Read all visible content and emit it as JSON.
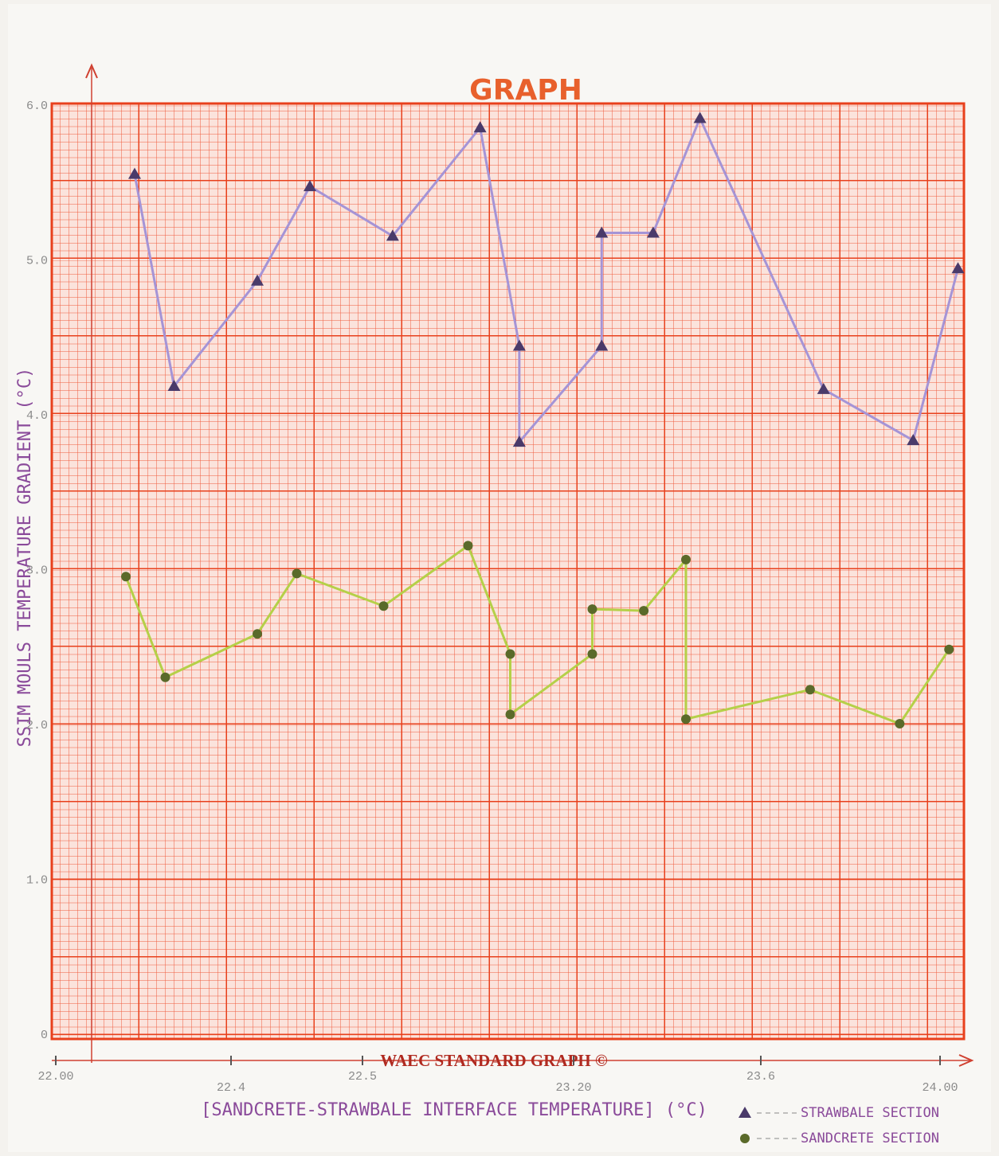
{
  "chart_data": {
    "type": "line",
    "title": "GRAPH",
    "y_label": "SSIM MOULS TEMPERATURE GRADIENT (°C)",
    "x_label": "[SANDCRETE-STRAWBALE INTERFACE TEMPERATURE] (°C)",
    "footer": "WAEC STANDARD GRAPH ©",
    "xlim": [
      22.0,
      24.06
    ],
    "xticks": [
      {
        "value": 22.0,
        "label": "22.00"
      },
      22.4,
      22.5,
      {
        "value": 23.2,
        "label": "23.20"
      },
      23.6,
      {
        "value": 24.0,
        "label": "24.00"
      }
    ],
    "ylim": [
      0,
      6.0
    ],
    "yticks": [
      {
        "value": 0,
        "label": "0"
      },
      {
        "value": 1,
        "label": "1.0"
      },
      {
        "value": 2,
        "label": "2.0"
      },
      {
        "value": 3,
        "label": "3.0"
      },
      {
        "value": 4,
        "label": "4.0"
      },
      {
        "value": 5,
        "label": "5.0"
      },
      {
        "value": 6,
        "label": "6.0"
      }
    ],
    "grid": true,
    "legend": "bottom-right",
    "series": [
      {
        "name": "STRAWBALE SECTION",
        "color": "#a594d6",
        "marker": "triangle",
        "marker_color": "#4a3a6a",
        "x": [
          22.18,
          22.27,
          22.42,
          22.46,
          22.6,
          22.89,
          23.02,
          23.02,
          23.26,
          23.26,
          23.37,
          23.47,
          23.74,
          23.94,
          24.04
        ],
        "values": [
          5.56,
          4.19,
          4.87,
          5.48,
          5.16,
          5.86,
          4.45,
          3.83,
          4.45,
          5.18,
          5.18,
          5.92,
          4.17,
          3.84,
          4.95
        ]
      },
      {
        "name": "SANDCRETE SECTION",
        "color": "#b5d048",
        "marker": "circle",
        "marker_color": "#5a6a2a",
        "x": [
          22.16,
          22.25,
          22.42,
          22.45,
          22.57,
          22.85,
          22.99,
          22.99,
          23.24,
          23.24,
          23.35,
          23.44,
          23.44,
          23.71,
          23.91,
          24.02
        ],
        "values": [
          2.96,
          2.31,
          2.59,
          2.98,
          2.77,
          3.16,
          2.46,
          2.07,
          2.46,
          2.75,
          2.74,
          3.07,
          2.04,
          2.23,
          2.01,
          2.49
        ]
      }
    ]
  }
}
